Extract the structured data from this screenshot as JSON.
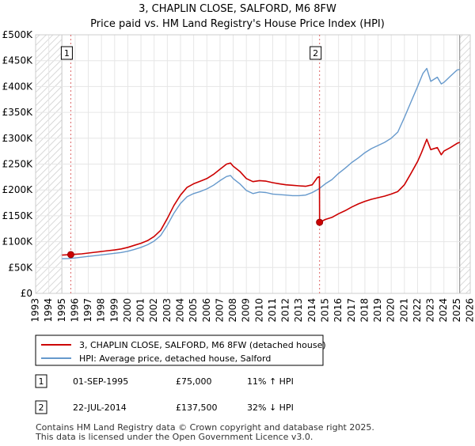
{
  "chart_data": {
    "type": "line",
    "title": "3, CHAPLIN CLOSE, SALFORD, M6 8FW",
    "subtitle": "Price paid vs. HM Land Registry's House Price Index (HPI)",
    "xlim": [
      1993,
      2026
    ],
    "ylim": [
      0,
      500000
    ],
    "x_ticks": [
      1993,
      1994,
      1995,
      1996,
      1997,
      1998,
      1999,
      2000,
      2001,
      2002,
      2003,
      2004,
      2005,
      2006,
      2007,
      2008,
      2009,
      2010,
      2011,
      2012,
      2013,
      2014,
      2015,
      2016,
      2017,
      2018,
      2019,
      2020,
      2021,
      2022,
      2023,
      2024,
      2025,
      2026
    ],
    "y_ticks": [
      {
        "value": 0,
        "label": "£0"
      },
      {
        "value": 50000,
        "label": "£50K"
      },
      {
        "value": 100000,
        "label": "£100K"
      },
      {
        "value": 150000,
        "label": "£150K"
      },
      {
        "value": 200000,
        "label": "£200K"
      },
      {
        "value": 250000,
        "label": "£250K"
      },
      {
        "value": 300000,
        "label": "£300K"
      },
      {
        "value": 350000,
        "label": "£350K"
      },
      {
        "value": 400000,
        "label": "£400K"
      },
      {
        "value": 450000,
        "label": "£450K"
      },
      {
        "value": 500000,
        "label": "£500K"
      }
    ],
    "hatched_ranges": [
      [
        1993,
        1995.0
      ],
      [
        2025.2,
        2026
      ]
    ],
    "series": [
      {
        "name": "3, CHAPLIN CLOSE, SALFORD, M6 8FW (detached house)",
        "color": "#cc0000",
        "points": [
          [
            1995.0,
            74000
          ],
          [
            1995.67,
            75000
          ],
          [
            1996.0,
            75500
          ],
          [
            1996.5,
            76500
          ],
          [
            1997.0,
            78000
          ],
          [
            1997.5,
            79500
          ],
          [
            1998.0,
            81000
          ],
          [
            1998.5,
            82500
          ],
          [
            1999.0,
            84000
          ],
          [
            1999.5,
            86000
          ],
          [
            2000.0,
            89000
          ],
          [
            2000.5,
            93000
          ],
          [
            2001.0,
            97000
          ],
          [
            2001.5,
            102000
          ],
          [
            2002.0,
            110000
          ],
          [
            2002.5,
            122000
          ],
          [
            2003.0,
            145000
          ],
          [
            2003.5,
            170000
          ],
          [
            2004.0,
            190000
          ],
          [
            2004.5,
            205000
          ],
          [
            2005.0,
            212000
          ],
          [
            2005.5,
            217000
          ],
          [
            2006.0,
            222000
          ],
          [
            2006.5,
            230000
          ],
          [
            2007.0,
            240000
          ],
          [
            2007.5,
            250000
          ],
          [
            2007.8,
            252000
          ],
          [
            2008.0,
            246000
          ],
          [
            2008.5,
            236000
          ],
          [
            2009.0,
            222000
          ],
          [
            2009.5,
            216000
          ],
          [
            2010.0,
            218000
          ],
          [
            2010.5,
            217000
          ],
          [
            2011.0,
            214000
          ],
          [
            2011.5,
            212000
          ],
          [
            2012.0,
            210000
          ],
          [
            2012.5,
            209000
          ],
          [
            2013.0,
            208000
          ],
          [
            2013.5,
            207000
          ],
          [
            2014.0,
            210000
          ],
          [
            2014.4,
            224000
          ],
          [
            2014.55,
            226000
          ],
          [
            2014.56,
            137500
          ],
          [
            2015.0,
            143000
          ],
          [
            2015.5,
            147000
          ],
          [
            2016.0,
            154000
          ],
          [
            2016.5,
            160000
          ],
          [
            2017.0,
            167000
          ],
          [
            2017.5,
            173000
          ],
          [
            2018.0,
            178000
          ],
          [
            2018.5,
            182000
          ],
          [
            2019.0,
            185000
          ],
          [
            2019.5,
            188000
          ],
          [
            2020.0,
            192000
          ],
          [
            2020.5,
            197000
          ],
          [
            2021.0,
            210000
          ],
          [
            2021.5,
            232000
          ],
          [
            2022.0,
            255000
          ],
          [
            2022.3,
            272000
          ],
          [
            2022.7,
            298000
          ],
          [
            2023.0,
            278000
          ],
          [
            2023.5,
            282000
          ],
          [
            2023.8,
            268000
          ],
          [
            2024.0,
            275000
          ],
          [
            2024.5,
            282000
          ],
          [
            2025.0,
            290000
          ],
          [
            2025.2,
            292000
          ]
        ]
      },
      {
        "name": "HPI: Average price, detached house, Salford",
        "color": "#6699cc",
        "points": [
          [
            1995.0,
            67000
          ],
          [
            1995.5,
            67500
          ],
          [
            1996.0,
            68500
          ],
          [
            1996.5,
            70000
          ],
          [
            1997.0,
            71500
          ],
          [
            1997.5,
            73000
          ],
          [
            1998.0,
            74500
          ],
          [
            1998.5,
            76000
          ],
          [
            1999.0,
            77500
          ],
          [
            1999.5,
            79000
          ],
          [
            2000.0,
            81500
          ],
          [
            2000.5,
            85000
          ],
          [
            2001.0,
            89000
          ],
          [
            2001.5,
            94000
          ],
          [
            2002.0,
            101000
          ],
          [
            2002.5,
            112000
          ],
          [
            2003.0,
            132000
          ],
          [
            2003.5,
            155000
          ],
          [
            2004.0,
            174000
          ],
          [
            2004.5,
            187000
          ],
          [
            2005.0,
            193000
          ],
          [
            2005.5,
            197000
          ],
          [
            2006.0,
            202000
          ],
          [
            2006.5,
            209000
          ],
          [
            2007.0,
            218000
          ],
          [
            2007.5,
            226000
          ],
          [
            2007.8,
            228000
          ],
          [
            2008.0,
            222000
          ],
          [
            2008.5,
            212000
          ],
          [
            2009.0,
            199000
          ],
          [
            2009.5,
            193000
          ],
          [
            2010.0,
            196000
          ],
          [
            2010.5,
            195000
          ],
          [
            2011.0,
            192000
          ],
          [
            2011.5,
            191000
          ],
          [
            2012.0,
            190000
          ],
          [
            2012.5,
            189000
          ],
          [
            2013.0,
            189000
          ],
          [
            2013.5,
            190000
          ],
          [
            2014.0,
            195000
          ],
          [
            2014.5,
            202000
          ],
          [
            2015.0,
            212000
          ],
          [
            2015.5,
            220000
          ],
          [
            2016.0,
            232000
          ],
          [
            2016.5,
            242000
          ],
          [
            2017.0,
            253000
          ],
          [
            2017.5,
            262000
          ],
          [
            2018.0,
            272000
          ],
          [
            2018.5,
            280000
          ],
          [
            2019.0,
            286000
          ],
          [
            2019.5,
            292000
          ],
          [
            2020.0,
            300000
          ],
          [
            2020.5,
            312000
          ],
          [
            2021.0,
            340000
          ],
          [
            2021.5,
            370000
          ],
          [
            2022.0,
            400000
          ],
          [
            2022.4,
            425000
          ],
          [
            2022.7,
            435000
          ],
          [
            2023.0,
            410000
          ],
          [
            2023.5,
            418000
          ],
          [
            2023.8,
            405000
          ],
          [
            2024.0,
            408000
          ],
          [
            2024.5,
            420000
          ],
          [
            2025.0,
            432000
          ],
          [
            2025.2,
            433000
          ]
        ]
      }
    ],
    "sales": [
      {
        "id": "1",
        "x": 1995.67,
        "y": 75000,
        "date": "01-SEP-1995",
        "price": "£75,000",
        "hpi": "11% ↑ HPI"
      },
      {
        "id": "2",
        "x": 2014.56,
        "y": 137500,
        "date": "22-JUL-2014",
        "price": "£137,500",
        "hpi": "32% ↓ HPI"
      }
    ],
    "legend": {
      "position": "bottom",
      "entries": [
        {
          "label": "3, CHAPLIN CLOSE, SALFORD, M6 8FW (detached house)",
          "color": "#cc0000"
        },
        {
          "label": "HPI: Average price, detached house, Salford",
          "color": "#6699cc"
        }
      ]
    },
    "footer": [
      "Contains HM Land Registry data © Crown copyright and database right 2025.",
      "This data is licensed under the Open Government Licence v3.0."
    ]
  }
}
